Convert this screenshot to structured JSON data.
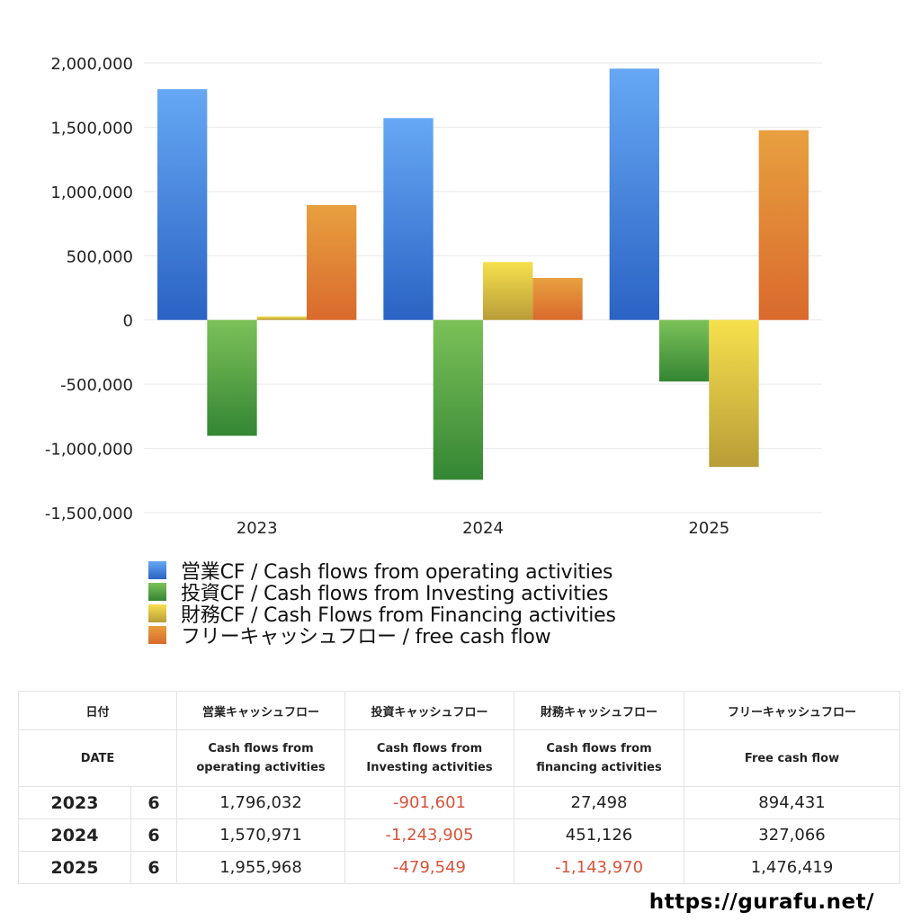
{
  "chart_data": {
    "type": "bar",
    "categories": [
      "2023",
      "2024",
      "2025"
    ],
    "ylim": [
      -1500000,
      2000000
    ],
    "yticks": [
      2000000,
      1500000,
      1000000,
      500000,
      0,
      -500000,
      -1000000,
      -1500000
    ],
    "ytick_labels": [
      "2,000,000",
      "1,500,000",
      "1,000,000",
      "500,000",
      "0",
      "-500,000",
      "-1,000,000",
      "-1,500,000"
    ],
    "grid": true,
    "legend_position": "bottom",
    "series": [
      {
        "name": "営業CF / Cash flows from operating activities",
        "values": [
          1796032,
          1570971,
          1955968
        ],
        "color_top": "#66a8f4",
        "color_bottom": "#2b63c4"
      },
      {
        "name": "投資CF / Cash flows from Investing activities",
        "values": [
          -901601,
          -1243905,
          -479549
        ],
        "color_top": "#7cc159",
        "color_bottom": "#348634"
      },
      {
        "name": "財務CF / Cash Flows from Financing activities",
        "values": [
          27498,
          451126,
          -1143970
        ],
        "color_top": "#f7e04d",
        "color_bottom": "#b89d38"
      },
      {
        "name": "フリーキャッシュフロー / free cash flow",
        "values": [
          894431,
          327066,
          1476419
        ],
        "color_top": "#e8a03f",
        "color_bottom": "#d96a2d"
      }
    ]
  },
  "table": {
    "headers": [
      "日付",
      "営業キャッシュフロー",
      "投資キャッシュフロー",
      "財務キャッシュフロー",
      "フリーキャッシュフロー"
    ],
    "subheaders": {
      "date": "DATE",
      "operating": [
        "Cash flows from",
        "operating activities"
      ],
      "investing": [
        "Cash flows from",
        "Investing activities"
      ],
      "financing": [
        "Cash flows from",
        "financing activities"
      ],
      "free": "Free cash flow"
    },
    "rows": [
      {
        "year": "2023",
        "month": "6",
        "operating": "1,796,032",
        "investing": "-901,601",
        "financing": "27,498",
        "free": "894,431"
      },
      {
        "year": "2024",
        "month": "6",
        "operating": "1,570,971",
        "investing": "-1,243,905",
        "financing": "451,126",
        "free": "327,066"
      },
      {
        "year": "2025",
        "month": "6",
        "operating": "1,955,968",
        "investing": "-479,549",
        "financing": "-1,143,970",
        "free": "1,476,419"
      }
    ],
    "negative_color": "#d9533b"
  },
  "site_url": "https://gurafu.net/"
}
